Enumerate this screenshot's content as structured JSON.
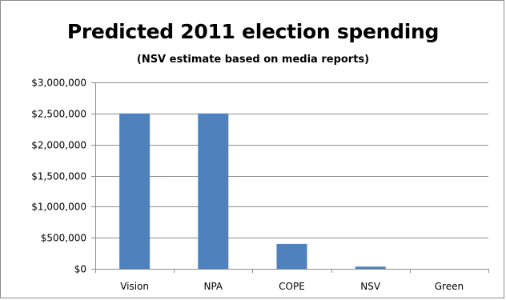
{
  "chart_data": {
    "type": "bar",
    "title": "Predicted 2011 election spending",
    "subtitle": "(NSV estimate based on media reports)",
    "xlabel": "",
    "ylabel": "",
    "categories": [
      "Vision",
      "NPA",
      "COPE",
      "NSV",
      "Green"
    ],
    "values": [
      2500000,
      2500000,
      400000,
      35000,
      0
    ],
    "ylim": [
      0,
      3000000
    ],
    "yticks": [
      0,
      500000,
      1000000,
      1500000,
      2000000,
      2500000,
      3000000
    ],
    "ytick_labels": [
      "$0",
      "$500,000",
      "$1,000,000",
      "$1,500,000",
      "$2,000,000",
      "$2,500,000",
      "$3,000,000"
    ],
    "grid": "horizontal",
    "legend": "none",
    "colors": {
      "bar": "#4f81bd",
      "gridline": "#8c8c8c",
      "axis": "#8c8c8c",
      "frame": "#8c8c8c"
    }
  }
}
